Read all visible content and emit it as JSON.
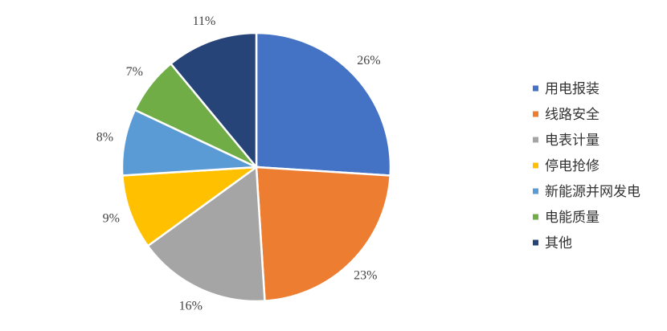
{
  "chart_data": {
    "type": "pie",
    "categories": [
      "用电报装",
      "线路安全",
      "电表计量",
      "停电抢修",
      "新能源并网发电",
      "电能质量",
      "其他"
    ],
    "values": [
      26,
      23,
      16,
      9,
      8,
      7,
      11
    ],
    "value_labels": [
      "26%",
      "23%",
      "16%",
      "9%",
      "8%",
      "7%",
      "11%"
    ],
    "colors": [
      "#4472c4",
      "#ed7d31",
      "#a5a5a5",
      "#ffc000",
      "#5b9bd5",
      "#70ad47",
      "#264478"
    ],
    "legend": "right"
  }
}
